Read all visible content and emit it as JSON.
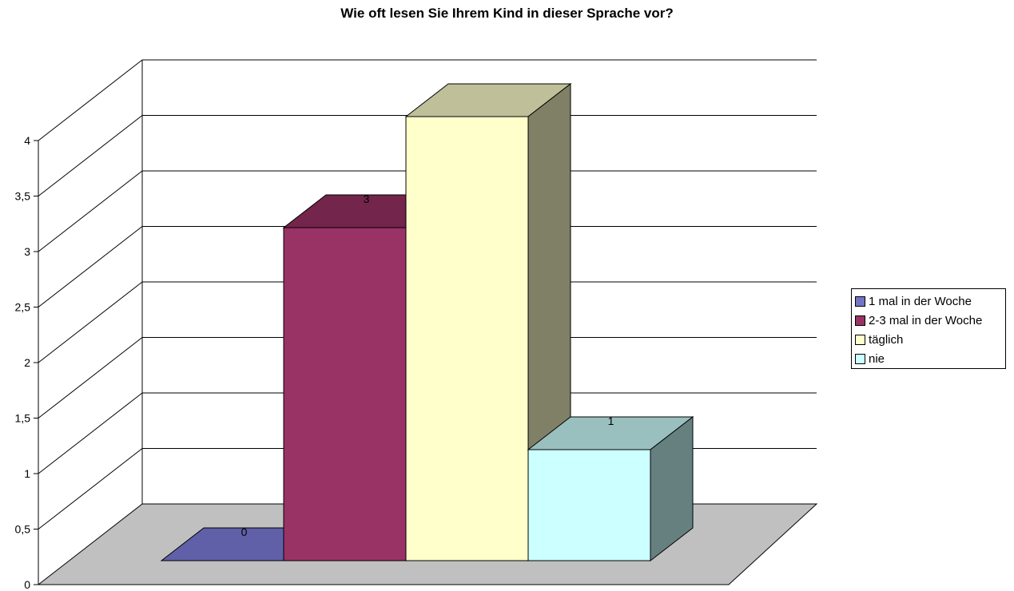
{
  "chart_data": {
    "type": "bar",
    "title": "Wie oft lesen Sie Ihrem Kind in dieser Sprache vor?",
    "categories": [
      "1 mal in der Woche",
      "2-3 mal in der Woche",
      "täglich",
      "nie"
    ],
    "values": [
      0,
      3,
      4,
      1
    ],
    "data_labels": [
      "0",
      "3",
      "",
      "1"
    ],
    "ylim": [
      0,
      4
    ],
    "yticks": [
      "0",
      "0,5",
      "1",
      "1,5",
      "2",
      "2,5",
      "3",
      "3,5",
      "4"
    ],
    "grid": true,
    "legend_position": "right",
    "colors": [
      {
        "front": "#7373c4",
        "top": "#6060a8",
        "side": "#4c4c86"
      },
      {
        "front": "#993366",
        "top": "#73254b",
        "side": "#5c1f3d"
      },
      {
        "front": "#ffffcc",
        "top": "#bfbf99",
        "side": "#808066"
      },
      {
        "front": "#ccffff",
        "top": "#99bfbf",
        "side": "#668080"
      }
    ],
    "floor_color": "#c0c0c0"
  },
  "legend": {
    "items": [
      {
        "label": "1 mal in der Woche",
        "color": "#7373c4"
      },
      {
        "label": "2-3 mal in der Woche",
        "color": "#993366"
      },
      {
        "label": "täglich",
        "color": "#ffffcc"
      },
      {
        "label": "nie",
        "color": "#ccffff"
      }
    ]
  }
}
